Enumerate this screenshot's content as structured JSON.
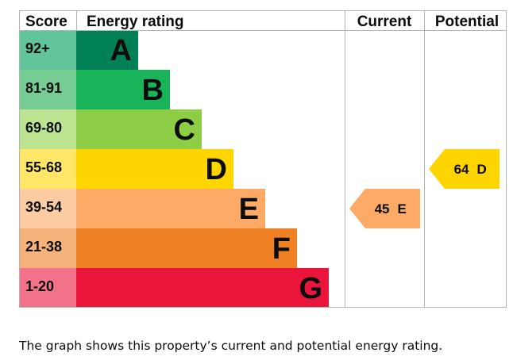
{
  "chart_data": {
    "type": "bar",
    "headers": {
      "score": "Score",
      "rating": "Energy rating",
      "current": "Current",
      "potential": "Potential"
    },
    "bands": [
      {
        "score": "92+",
        "letter": "A",
        "color": "#008054",
        "score_bg": "#62c49a",
        "text_color": "#0b0c0c"
      },
      {
        "score": "81-91",
        "letter": "B",
        "color": "#19b459",
        "score_bg": "#75cd94",
        "text_color": "#0b0c0c"
      },
      {
        "score": "69-80",
        "letter": "C",
        "color": "#8dce46",
        "score_bg": "#bbe390",
        "text_color": "#0b0c0c"
      },
      {
        "score": "55-68",
        "letter": "D",
        "color": "#ffd500",
        "score_bg": "#ffe666",
        "text_color": "#0b0c0c"
      },
      {
        "score": "39-54",
        "letter": "E",
        "color": "#fcaa65",
        "score_bg": "#fdcca3",
        "text_color": "#0b0c0c"
      },
      {
        "score": "21-38",
        "letter": "F",
        "color": "#ef8023",
        "score_bg": "#f5b37b",
        "text_color": "#0b0c0c"
      },
      {
        "score": "1-20",
        "letter": "G",
        "color": "#e9153b",
        "score_bg": "#f27389",
        "text_color": "#0b0c0c"
      }
    ],
    "current": {
      "value": 45,
      "label": "E",
      "band": "E"
    },
    "potential": {
      "value": 64,
      "label": "D",
      "band": "D"
    }
  },
  "caption": "The graph shows this property’s current and potential energy rating."
}
